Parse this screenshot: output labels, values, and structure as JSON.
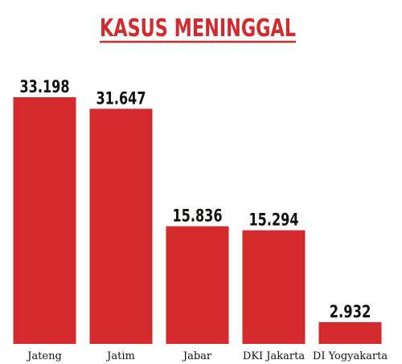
{
  "chart_data": {
    "type": "bar",
    "title": "KASUS MENINGGAL",
    "categories": [
      "Jateng",
      "Jatim",
      "Jabar",
      "DKI Jakarta",
      "DI Yogyakarta"
    ],
    "values": [
      33198,
      31647,
      15836,
      15294,
      2932
    ],
    "value_labels": [
      "33.198",
      "31.647",
      "15.836",
      "15.294",
      "2.932"
    ],
    "color": "#d42a2e"
  }
}
